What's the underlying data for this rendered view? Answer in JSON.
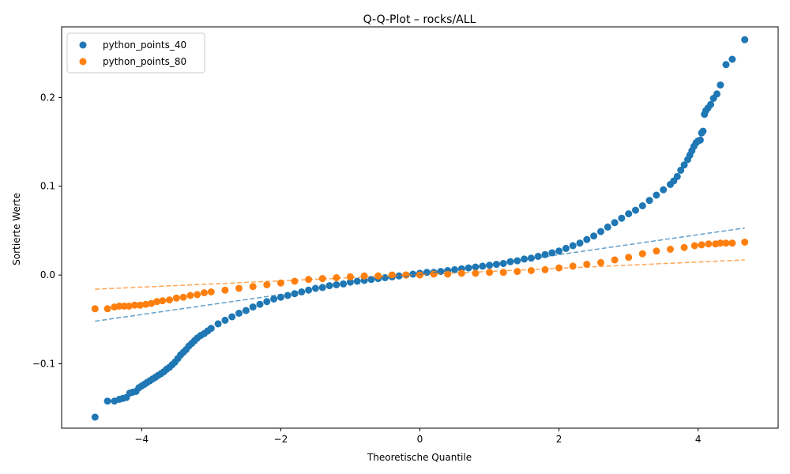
{
  "chart_data": {
    "type": "scatter",
    "title": "Q-Q-Plot – rocks/ALL",
    "xlabel": "Theoretische Quantile",
    "ylabel": "Sortierte Werte",
    "xlim": [
      -5.15,
      5.15
    ],
    "ylim": [
      -0.1725,
      0.2795
    ],
    "xticks": [
      -4,
      -2,
      0,
      2,
      4
    ],
    "xtick_labels": [
      "−4",
      "−2",
      "0",
      "2",
      "4"
    ],
    "yticks": [
      -0.1,
      0.0,
      0.1,
      0.2
    ],
    "ytick_labels": [
      "−0.1",
      "0.0",
      "0.1",
      "0.2"
    ],
    "grid": false,
    "legend_position": "top-left",
    "series": [
      {
        "name": "python_points_40",
        "color": "#1f77b4",
        "points": [
          [
            -4.67,
            -0.16
          ],
          [
            -4.49,
            -0.142
          ],
          [
            -4.39,
            -0.142
          ],
          [
            -4.32,
            -0.14
          ],
          [
            -4.27,
            -0.139
          ],
          [
            -4.22,
            -0.138
          ],
          [
            -4.17,
            -0.133
          ],
          [
            -4.13,
            -0.132
          ],
          [
            -4.08,
            -0.131
          ],
          [
            -4.04,
            -0.127
          ],
          [
            -4.0,
            -0.125
          ],
          [
            -3.96,
            -0.123
          ],
          [
            -3.92,
            -0.121
          ],
          [
            -3.88,
            -0.119
          ],
          [
            -3.84,
            -0.117
          ],
          [
            -3.8,
            -0.115
          ],
          [
            -3.76,
            -0.113
          ],
          [
            -3.72,
            -0.111
          ],
          [
            -3.68,
            -0.109
          ],
          [
            -3.64,
            -0.106
          ],
          [
            -3.6,
            -0.104
          ],
          [
            -3.56,
            -0.101
          ],
          [
            -3.52,
            -0.098
          ],
          [
            -3.48,
            -0.094
          ],
          [
            -3.44,
            -0.09
          ],
          [
            -3.4,
            -0.087
          ],
          [
            -3.36,
            -0.084
          ],
          [
            -3.32,
            -0.08
          ],
          [
            -3.28,
            -0.077
          ],
          [
            -3.24,
            -0.074
          ],
          [
            -3.2,
            -0.071
          ],
          [
            -3.15,
            -0.068
          ],
          [
            -3.1,
            -0.066
          ],
          [
            -3.05,
            -0.063
          ],
          [
            -3.0,
            -0.06
          ],
          [
            -2.9,
            -0.055
          ],
          [
            -2.8,
            -0.051
          ],
          [
            -2.7,
            -0.047
          ],
          [
            -2.6,
            -0.043
          ],
          [
            -2.5,
            -0.04
          ],
          [
            -2.4,
            -0.036
          ],
          [
            -2.3,
            -0.033
          ],
          [
            -2.2,
            -0.03
          ],
          [
            -2.1,
            -0.027
          ],
          [
            -2.0,
            -0.025
          ],
          [
            -1.9,
            -0.023
          ],
          [
            -1.8,
            -0.021
          ],
          [
            -1.7,
            -0.019
          ],
          [
            -1.6,
            -0.017
          ],
          [
            -1.5,
            -0.015
          ],
          [
            -1.4,
            -0.014
          ],
          [
            -1.3,
            -0.012
          ],
          [
            -1.2,
            -0.011
          ],
          [
            -1.1,
            -0.01
          ],
          [
            -1.0,
            -0.008
          ],
          [
            -0.9,
            -0.007
          ],
          [
            -0.8,
            -0.006
          ],
          [
            -0.7,
            -0.005
          ],
          [
            -0.6,
            -0.004
          ],
          [
            -0.5,
            -0.003
          ],
          [
            -0.4,
            -0.002
          ],
          [
            -0.3,
            -0.001
          ],
          [
            -0.2,
            0.0
          ],
          [
            -0.1,
            0.001
          ],
          [
            0.0,
            0.002
          ],
          [
            0.1,
            0.003
          ],
          [
            0.2,
            0.003
          ],
          [
            0.3,
            0.004
          ],
          [
            0.4,
            0.005
          ],
          [
            0.5,
            0.006
          ],
          [
            0.6,
            0.007
          ],
          [
            0.7,
            0.008
          ],
          [
            0.8,
            0.009
          ],
          [
            0.9,
            0.01
          ],
          [
            1.0,
            0.011
          ],
          [
            1.1,
            0.012
          ],
          [
            1.2,
            0.013
          ],
          [
            1.3,
            0.015
          ],
          [
            1.4,
            0.016
          ],
          [
            1.5,
            0.018
          ],
          [
            1.6,
            0.019
          ],
          [
            1.7,
            0.021
          ],
          [
            1.8,
            0.023
          ],
          [
            1.9,
            0.025
          ],
          [
            2.0,
            0.027
          ],
          [
            2.1,
            0.03
          ],
          [
            2.2,
            0.033
          ],
          [
            2.3,
            0.036
          ],
          [
            2.4,
            0.04
          ],
          [
            2.5,
            0.044
          ],
          [
            2.6,
            0.049
          ],
          [
            2.7,
            0.054
          ],
          [
            2.8,
            0.059
          ],
          [
            2.9,
            0.064
          ],
          [
            3.0,
            0.069
          ],
          [
            3.1,
            0.073
          ],
          [
            3.2,
            0.078
          ],
          [
            3.3,
            0.084
          ],
          [
            3.4,
            0.09
          ],
          [
            3.5,
            0.096
          ],
          [
            3.6,
            0.102
          ],
          [
            3.65,
            0.106
          ],
          [
            3.7,
            0.111
          ],
          [
            3.75,
            0.118
          ],
          [
            3.8,
            0.124
          ],
          [
            3.85,
            0.13
          ],
          [
            3.88,
            0.135
          ],
          [
            3.91,
            0.14
          ],
          [
            3.94,
            0.145
          ],
          [
            3.97,
            0.149
          ],
          [
            4.0,
            0.151
          ],
          [
            4.03,
            0.152
          ],
          [
            4.05,
            0.16
          ],
          [
            4.07,
            0.162
          ],
          [
            4.09,
            0.181
          ],
          [
            4.11,
            0.185
          ],
          [
            4.14,
            0.188
          ],
          [
            4.18,
            0.192
          ],
          [
            4.22,
            0.199
          ],
          [
            4.27,
            0.204
          ],
          [
            4.32,
            0.214
          ],
          [
            4.4,
            0.237
          ],
          [
            4.49,
            0.243
          ],
          [
            4.67,
            0.265
          ]
        ],
        "fit_line": [
          [
            -4.67,
            -0.052
          ],
          [
            4.67,
            0.053
          ]
        ]
      },
      {
        "name": "python_points_80",
        "color": "#ff7f0e",
        "points": [
          [
            -4.67,
            -0.038
          ],
          [
            -4.49,
            -0.038
          ],
          [
            -4.39,
            -0.036
          ],
          [
            -4.32,
            -0.035
          ],
          [
            -4.25,
            -0.035
          ],
          [
            -4.18,
            -0.035
          ],
          [
            -4.1,
            -0.034
          ],
          [
            -4.02,
            -0.034
          ],
          [
            -3.94,
            -0.033
          ],
          [
            -3.86,
            -0.032
          ],
          [
            -3.78,
            -0.03
          ],
          [
            -3.7,
            -0.029
          ],
          [
            -3.6,
            -0.028
          ],
          [
            -3.5,
            -0.026
          ],
          [
            -3.4,
            -0.025
          ],
          [
            -3.3,
            -0.023
          ],
          [
            -3.2,
            -0.022
          ],
          [
            -3.1,
            -0.02
          ],
          [
            -3.0,
            -0.019
          ],
          [
            -2.8,
            -0.017
          ],
          [
            -2.6,
            -0.015
          ],
          [
            -2.4,
            -0.013
          ],
          [
            -2.2,
            -0.011
          ],
          [
            -2.0,
            -0.009
          ],
          [
            -1.8,
            -0.007
          ],
          [
            -1.6,
            -0.005
          ],
          [
            -1.4,
            -0.004
          ],
          [
            -1.2,
            -0.003
          ],
          [
            -1.0,
            -0.002
          ],
          [
            -0.8,
            -0.001
          ],
          [
            -0.6,
            -0.001
          ],
          [
            -0.4,
            0.0
          ],
          [
            -0.2,
            0.0
          ],
          [
            0.0,
            0.0
          ],
          [
            0.2,
            0.001
          ],
          [
            0.4,
            0.001
          ],
          [
            0.6,
            0.002
          ],
          [
            0.8,
            0.002
          ],
          [
            1.0,
            0.003
          ],
          [
            1.2,
            0.003
          ],
          [
            1.4,
            0.004
          ],
          [
            1.6,
            0.005
          ],
          [
            1.8,
            0.006
          ],
          [
            2.0,
            0.008
          ],
          [
            2.2,
            0.01
          ],
          [
            2.4,
            0.012
          ],
          [
            2.6,
            0.014
          ],
          [
            2.8,
            0.017
          ],
          [
            3.0,
            0.02
          ],
          [
            3.2,
            0.024
          ],
          [
            3.4,
            0.027
          ],
          [
            3.6,
            0.029
          ],
          [
            3.8,
            0.031
          ],
          [
            3.95,
            0.033
          ],
          [
            4.05,
            0.034
          ],
          [
            4.15,
            0.035
          ],
          [
            4.25,
            0.035
          ],
          [
            4.32,
            0.036
          ],
          [
            4.4,
            0.036
          ],
          [
            4.49,
            0.036
          ],
          [
            4.67,
            0.037
          ]
        ],
        "fit_line": [
          [
            -4.67,
            -0.016
          ],
          [
            4.67,
            0.017
          ]
        ]
      }
    ]
  }
}
